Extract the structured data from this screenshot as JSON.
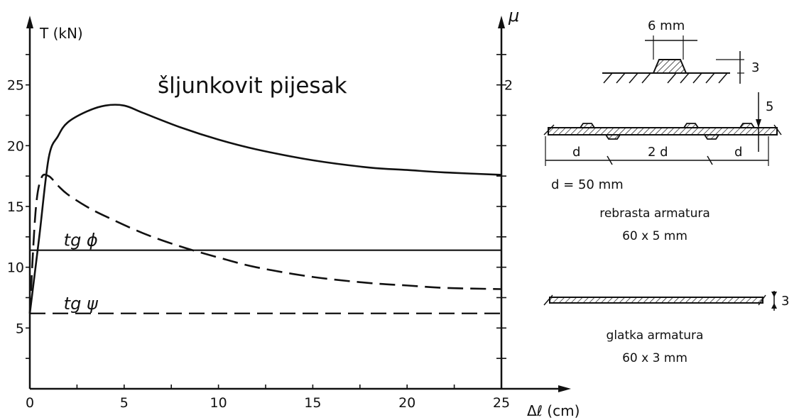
{
  "chart_data": {
    "type": "line",
    "title": "šljunkovit pijesak",
    "xlabel": "Δℓ (cm)",
    "ylabel": "T (kN)",
    "y2label": "μ",
    "xlim": [
      0,
      25
    ],
    "ylim": [
      0,
      30
    ],
    "y2lim": [
      0,
      2.4
    ],
    "x_ticks": [
      "0",
      "5",
      "10",
      "15",
      "20",
      "25"
    ],
    "y_ticks": [
      "5",
      "10",
      "15",
      "20",
      "25"
    ],
    "y2_ticks": [
      "2"
    ],
    "series": [
      {
        "style": "solid",
        "x": [
          0,
          0.5,
          1.0,
          1.5,
          2.0,
          3.0,
          4.0,
          5.0,
          6.0,
          8.0,
          10.0,
          12.0,
          15.0,
          18.0,
          20.0,
          22.0,
          25.0
        ],
        "y": [
          6.2,
          12.5,
          19.0,
          20.8,
          21.9,
          22.8,
          23.3,
          23.3,
          22.7,
          21.5,
          20.5,
          19.7,
          18.8,
          18.2,
          18.0,
          17.8,
          17.6
        ]
      },
      {
        "style": "dashed",
        "x": [
          0,
          0.3,
          0.6,
          1.0,
          1.5,
          2.0,
          3.0,
          4.0,
          6.0,
          8.0,
          10.0,
          12.0,
          15.0,
          18.0,
          20.0,
          22.0,
          25.0
        ],
        "y": [
          6.2,
          14.5,
          17.3,
          17.5,
          16.7,
          16.0,
          15.0,
          14.2,
          12.8,
          11.7,
          10.8,
          10.0,
          9.2,
          8.7,
          8.5,
          8.3,
          8.2
        ]
      }
    ],
    "reference_lines": [
      {
        "label": "tg ϕ",
        "y": 11.4,
        "style": "solid"
      },
      {
        "label": "tg ψ",
        "y": 6.2,
        "style": "dashed"
      }
    ]
  },
  "diagrams": {
    "rib_width": "6 mm",
    "rib_height": "3",
    "ribbed_thickness": "5",
    "spacing_d_left": "d",
    "spacing_2d": "2 d",
    "spacing_d_right": "d",
    "d_value": "d = 50 mm",
    "ribbed_name": "rebrasta armatura",
    "ribbed_dims": "60 x 5 mm",
    "smooth_thickness": "3",
    "smooth_name": "glatka armatura",
    "smooth_dims": "60 x 3 mm"
  }
}
